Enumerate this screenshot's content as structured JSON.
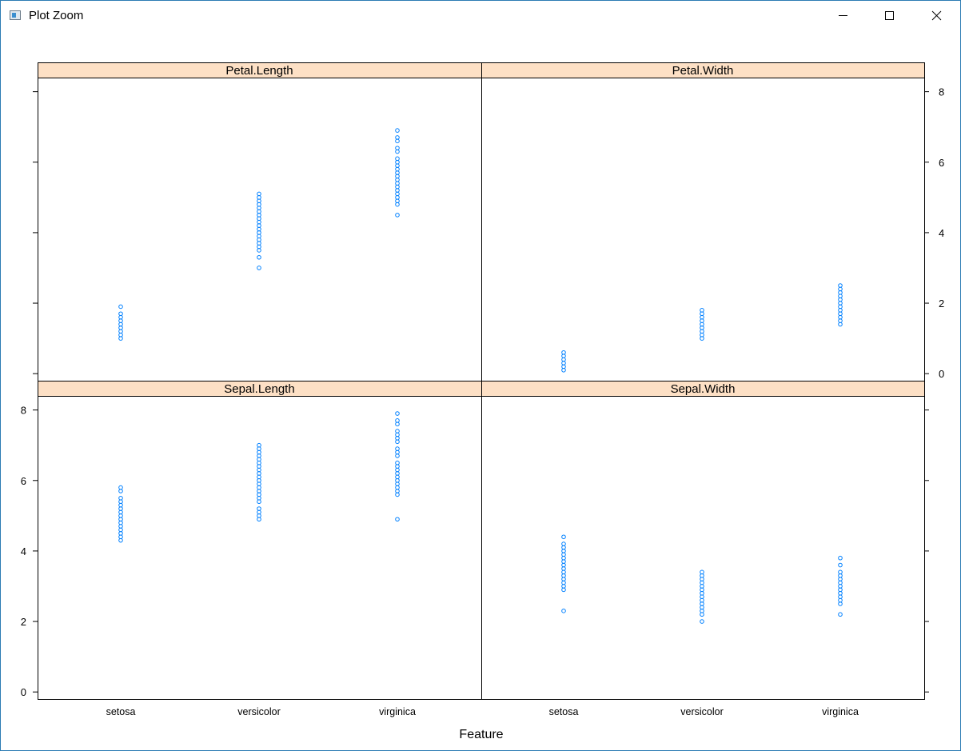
{
  "window": {
    "title": "Plot Zoom",
    "icon": "plot-window-icon",
    "controls": [
      "minimize-icon",
      "maximize-icon",
      "close-icon"
    ]
  },
  "colors": {
    "strip_background": "#fde0c5",
    "point_stroke": "#0080ff",
    "frame": "#000000"
  },
  "chart_data": {
    "type": "scatter",
    "layout": "2x2 lattice panels",
    "xlabel": "Feature",
    "ylabel": "",
    "categories": [
      "setosa",
      "versicolor",
      "virginica"
    ],
    "ylim": [
      -0.2,
      8.4
    ],
    "yticks": [
      0,
      2,
      4,
      6,
      8
    ],
    "panels": [
      {
        "name": "Petal.Length",
        "row": "top",
        "col": "left",
        "series": [
          {
            "category": "setosa",
            "values": [
              1.0,
              1.1,
              1.2,
              1.3,
              1.4,
              1.5,
              1.6,
              1.7,
              1.9
            ]
          },
          {
            "category": "versicolor",
            "values": [
              3.0,
              3.3,
              3.5,
              3.6,
              3.7,
              3.8,
              3.9,
              4.0,
              4.1,
              4.2,
              4.3,
              4.4,
              4.5,
              4.6,
              4.7,
              4.8,
              4.9,
              5.0,
              5.1
            ]
          },
          {
            "category": "virginica",
            "values": [
              4.5,
              4.8,
              4.9,
              5.0,
              5.1,
              5.2,
              5.3,
              5.4,
              5.5,
              5.6,
              5.7,
              5.8,
              5.9,
              6.0,
              6.1,
              6.3,
              6.4,
              6.6,
              6.7,
              6.9
            ]
          }
        ]
      },
      {
        "name": "Petal.Width",
        "row": "top",
        "col": "right",
        "series": [
          {
            "category": "setosa",
            "values": [
              0.1,
              0.2,
              0.3,
              0.4,
              0.5,
              0.6
            ]
          },
          {
            "category": "versicolor",
            "values": [
              1.0,
              1.1,
              1.2,
              1.3,
              1.4,
              1.5,
              1.6,
              1.7,
              1.8
            ]
          },
          {
            "category": "virginica",
            "values": [
              1.4,
              1.5,
              1.6,
              1.7,
              1.8,
              1.9,
              2.0,
              2.1,
              2.2,
              2.3,
              2.4,
              2.5
            ]
          }
        ]
      },
      {
        "name": "Sepal.Length",
        "row": "bottom",
        "col": "left",
        "series": [
          {
            "category": "setosa",
            "values": [
              4.3,
              4.4,
              4.5,
              4.6,
              4.7,
              4.8,
              4.9,
              5.0,
              5.1,
              5.2,
              5.3,
              5.4,
              5.5,
              5.7,
              5.8
            ]
          },
          {
            "category": "versicolor",
            "values": [
              4.9,
              5.0,
              5.1,
              5.2,
              5.4,
              5.5,
              5.6,
              5.7,
              5.8,
              5.9,
              6.0,
              6.1,
              6.2,
              6.3,
              6.4,
              6.5,
              6.6,
              6.7,
              6.8,
              6.9,
              7.0
            ]
          },
          {
            "category": "virginica",
            "values": [
              4.9,
              5.6,
              5.7,
              5.8,
              5.9,
              6.0,
              6.1,
              6.2,
              6.3,
              6.4,
              6.5,
              6.7,
              6.8,
              6.9,
              7.1,
              7.2,
              7.3,
              7.4,
              7.6,
              7.7,
              7.9
            ]
          }
        ]
      },
      {
        "name": "Sepal.Width",
        "row": "bottom",
        "col": "right",
        "series": [
          {
            "category": "setosa",
            "values": [
              2.3,
              2.9,
              3.0,
              3.1,
              3.2,
              3.3,
              3.4,
              3.5,
              3.6,
              3.7,
              3.8,
              3.9,
              4.0,
              4.1,
              4.2,
              4.4
            ]
          },
          {
            "category": "versicolor",
            "values": [
              2.0,
              2.2,
              2.3,
              2.4,
              2.5,
              2.6,
              2.7,
              2.8,
              2.9,
              3.0,
              3.1,
              3.2,
              3.3,
              3.4
            ]
          },
          {
            "category": "virginica",
            "values": [
              2.2,
              2.5,
              2.6,
              2.7,
              2.8,
              2.9,
              3.0,
              3.1,
              3.2,
              3.3,
              3.4,
              3.6,
              3.8
            ]
          }
        ]
      }
    ]
  }
}
